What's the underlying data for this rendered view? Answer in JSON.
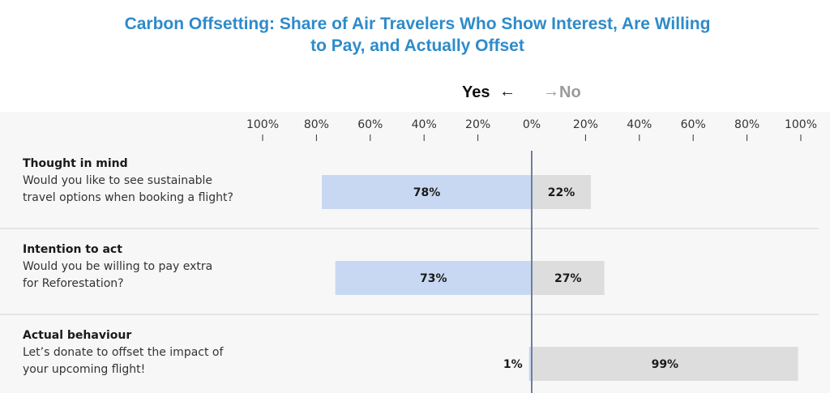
{
  "chart_data": {
    "type": "bar",
    "orientation": "horizontal-diverging",
    "title_lines": [
      "Carbon Offsetting: Share of Air Travelers Who Show Interest, Are  Willing",
      "to Pay, and Actually Offset"
    ],
    "legend": {
      "yes": "Yes",
      "yes_arrow": "←",
      "no": "No",
      "no_arrow": "→"
    },
    "ticks_left": [
      "100%",
      "80%",
      "60%",
      "40%",
      "20%"
    ],
    "ticks_right": [
      "0%",
      "20%",
      "40%",
      "60%",
      "80%",
      "100%"
    ],
    "xlim": [
      -100,
      100
    ],
    "rows": [
      {
        "title": "Thought in mind",
        "question_lines": [
          "Would you like to see sustainable",
          "travel options when booking a flight?"
        ],
        "yes": 78,
        "yes_label": "78%",
        "no": 22,
        "no_label": "22%"
      },
      {
        "title": "Intention to act",
        "question_lines": [
          "Would you be willing to pay extra",
          "for Reforestation?"
        ],
        "yes": 73,
        "yes_label": "73%",
        "no": 27,
        "no_label": "27%"
      },
      {
        "title": "Actual behaviour",
        "question_lines": [
          "Let’s donate to offset the impact of",
          "your upcoming flight!"
        ],
        "yes": 1,
        "yes_label": "1%",
        "no": 99,
        "no_label": "99%"
      }
    ],
    "colors": {
      "yes": "#C9D8F2",
      "no": "#DDDDDD",
      "axis": "#6F7F96",
      "row_bg": "#F7F7F7",
      "separator": "#CFD3DA"
    }
  }
}
